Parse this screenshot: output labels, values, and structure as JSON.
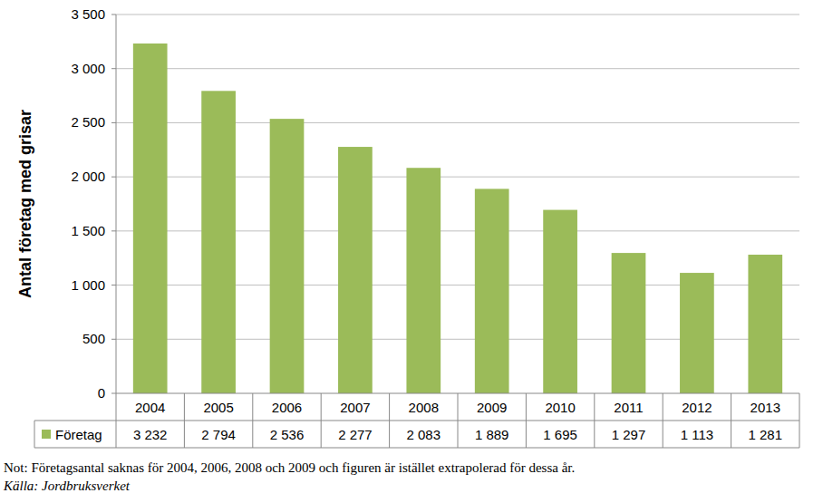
{
  "chart_data": {
    "type": "bar",
    "y_label": "Antal företag med grisar",
    "categories": [
      "2004",
      "2005",
      "2006",
      "2007",
      "2008",
      "2009",
      "2010",
      "2011",
      "2012",
      "2013"
    ],
    "series": [
      {
        "name": "Företag",
        "color": "#9bbb59",
        "values": [
          3232,
          2794,
          2536,
          2277,
          2083,
          1889,
          1695,
          1297,
          1113,
          1281
        ],
        "value_labels": [
          "3 232",
          "2 794",
          "2 536",
          "2 277",
          "2 083",
          "1 889",
          "1 695",
          "1 297",
          "1 113",
          "1 281"
        ]
      }
    ],
    "ylim": [
      0,
      3500
    ],
    "yticks": [
      0,
      500,
      {
        "value": 1000,
        "label": "1 000"
      },
      {
        "value": 1500,
        "label": "1 500"
      },
      {
        "value": 2000,
        "label": "2 000"
      },
      {
        "value": 2500,
        "label": "2 500"
      },
      {
        "value": 3000,
        "label": "3 000"
      },
      {
        "value": 3500,
        "label": "3 500"
      }
    ],
    "grid": true,
    "data_labels": true,
    "note": "Not: Företagsantal saknas för 2004, 2006, 2008 och 2009 och figuren är istället extrapolerad för dessa år.",
    "source": "Källa: Jordbruksverket"
  }
}
